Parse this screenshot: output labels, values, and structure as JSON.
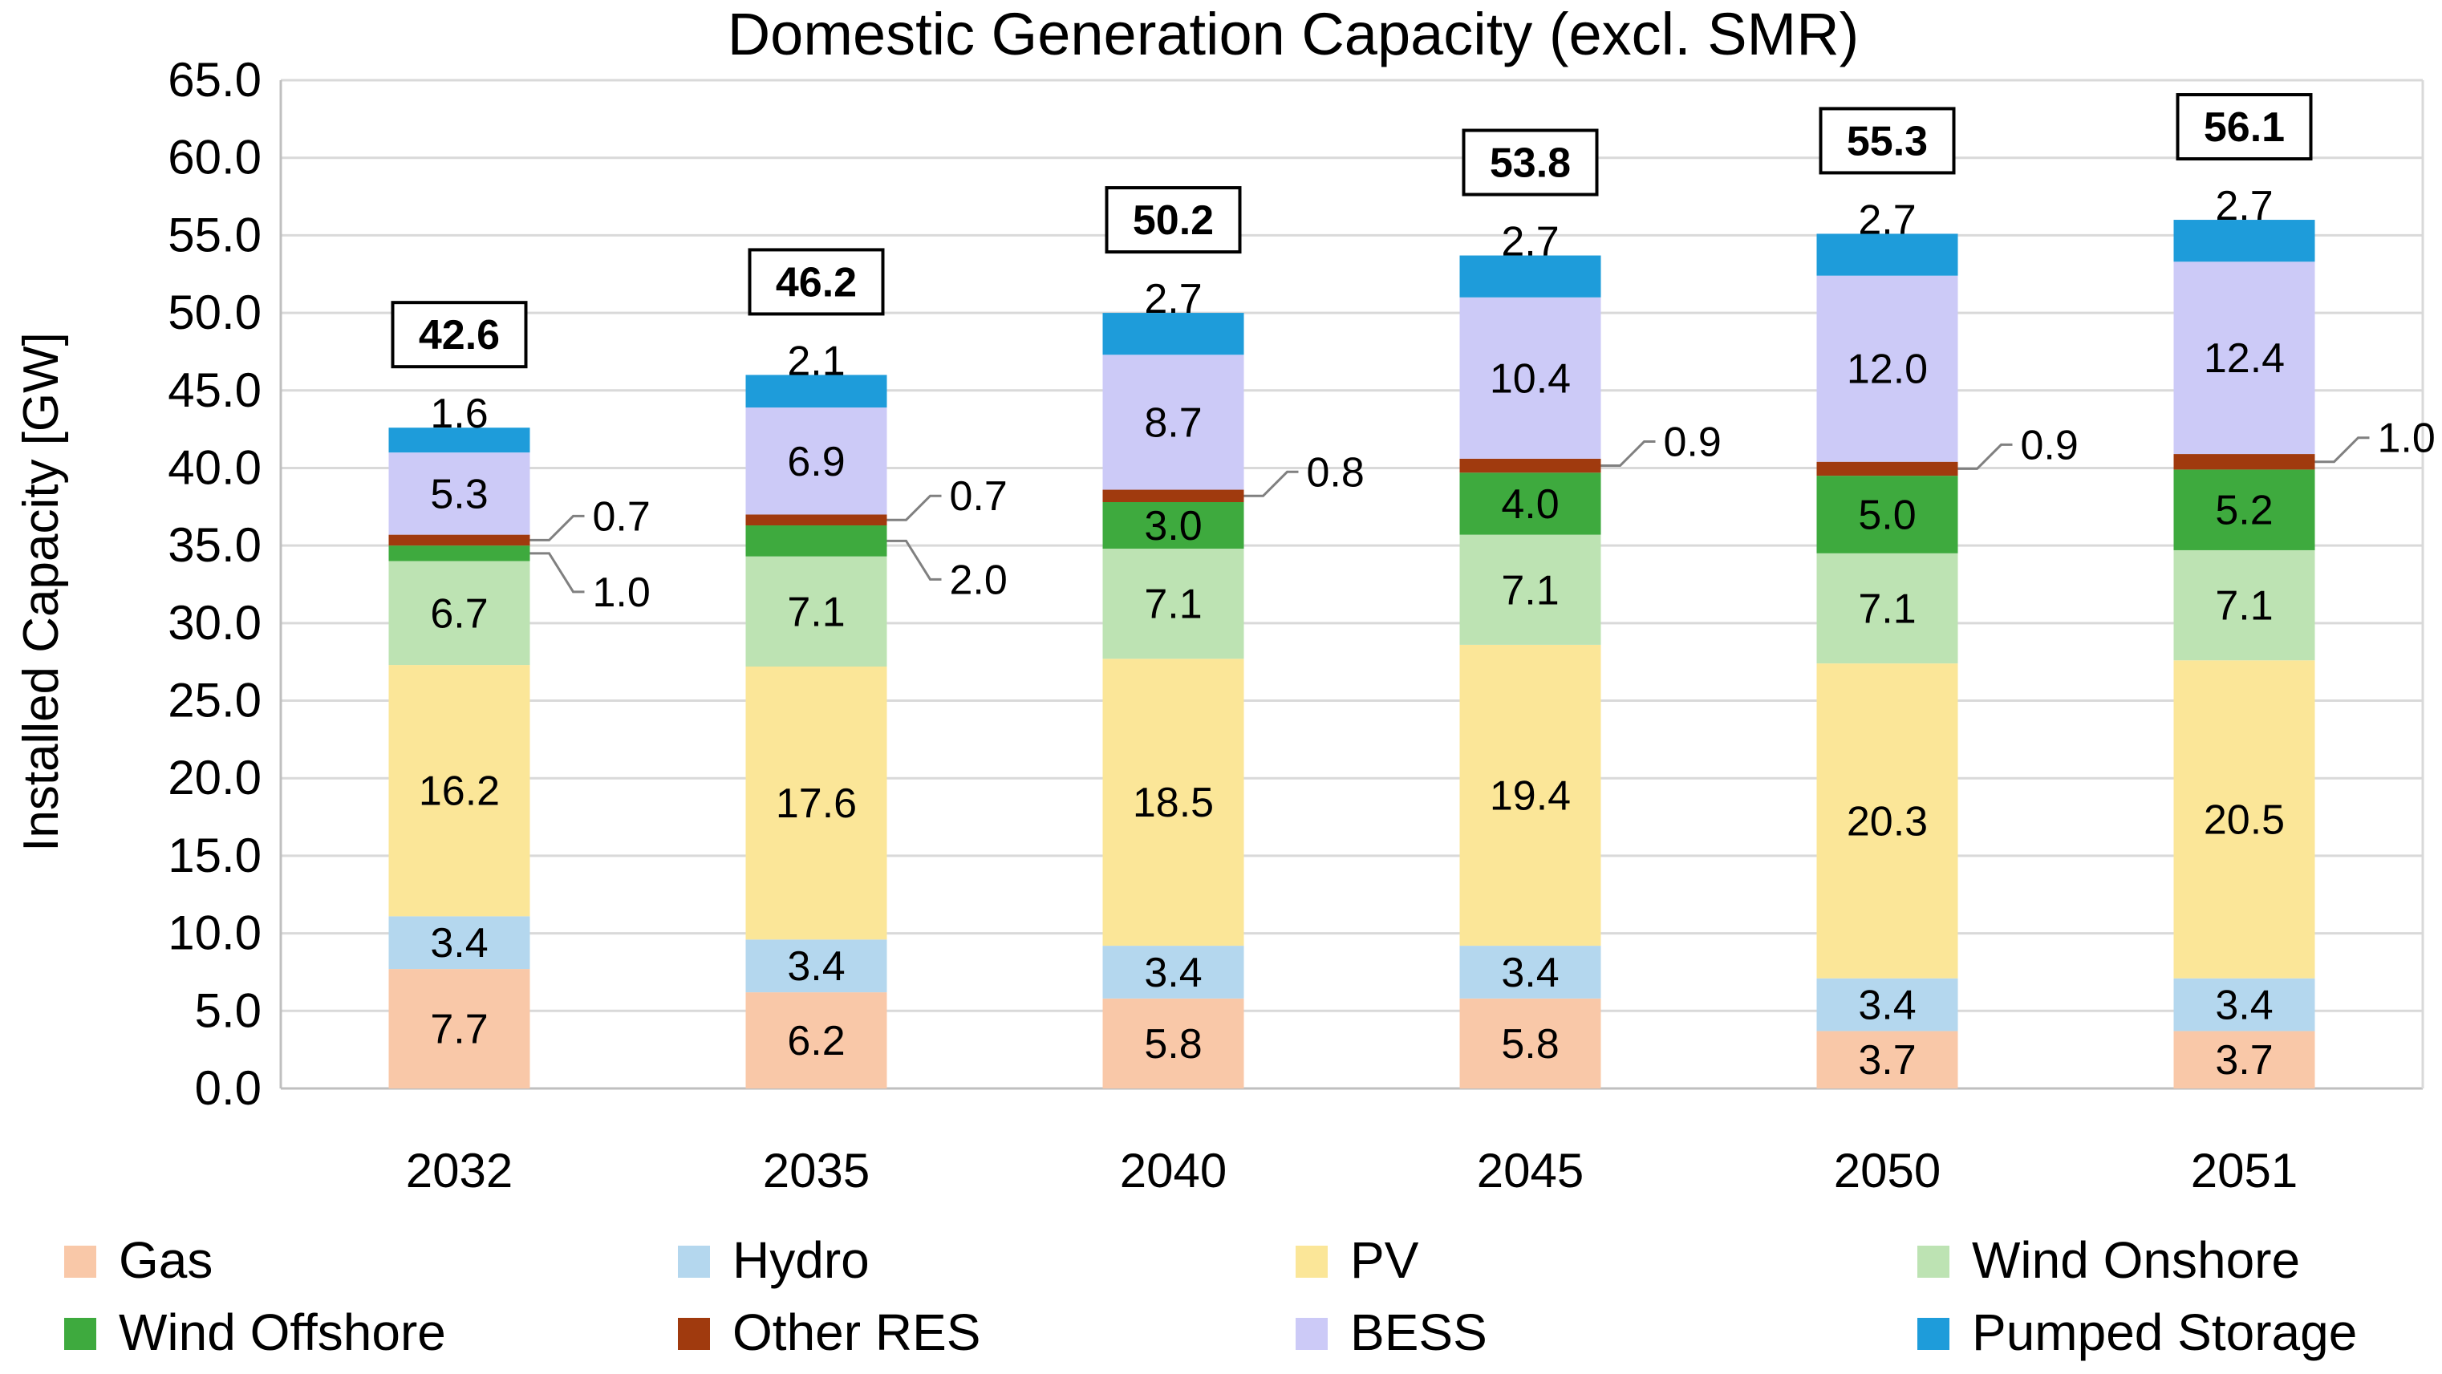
{
  "chart_data": {
    "type": "bar",
    "stacked": true,
    "title": "Domestic Generation Capacity (excl. SMR)",
    "xlabel": "",
    "ylabel": "Installed Capacity [GW]",
    "ylim": [
      0,
      65
    ],
    "ytick_step": 5,
    "grid": true,
    "legend_position": "bottom",
    "categories": [
      "2032",
      "2035",
      "2040",
      "2045",
      "2050",
      "2051"
    ],
    "series": [
      {
        "name": "Gas",
        "color": "#F9C8A8",
        "values": [
          7.7,
          6.2,
          5.8,
          5.8,
          3.7,
          3.7
        ]
      },
      {
        "name": "Hydro",
        "color": "#B4D7EE",
        "values": [
          3.4,
          3.4,
          3.4,
          3.4,
          3.4,
          3.4
        ]
      },
      {
        "name": "PV",
        "color": "#FBE698",
        "values": [
          16.2,
          17.6,
          18.5,
          19.4,
          20.3,
          20.5
        ]
      },
      {
        "name": "Wind Onshore",
        "color": "#BDE3B3",
        "values": [
          6.7,
          7.1,
          7.1,
          7.1,
          7.1,
          7.1
        ]
      },
      {
        "name": "Wind Offshore",
        "color": "#3EAA3E",
        "values": [
          1.0,
          2.0,
          3.0,
          4.0,
          5.0,
          5.2
        ]
      },
      {
        "name": "Other RES",
        "color": "#A03A0E",
        "values": [
          0.7,
          0.7,
          0.8,
          0.9,
          0.9,
          1.0
        ]
      },
      {
        "name": "BESS",
        "color": "#CCCAF7",
        "values": [
          5.3,
          6.9,
          8.7,
          10.4,
          12.0,
          12.4
        ]
      },
      {
        "name": "Pumped Storage",
        "color": "#1E9CDA",
        "values": [
          1.6,
          2.1,
          2.7,
          2.7,
          2.7,
          2.7
        ]
      }
    ],
    "totals": [
      42.6,
      46.2,
      50.2,
      53.8,
      55.3,
      56.1
    ],
    "legend_order": [
      "Gas",
      "Hydro",
      "PV",
      "Wind Onshore",
      "Wind Offshore",
      "Other RES",
      "BESS",
      "Pumped Storage"
    ]
  }
}
